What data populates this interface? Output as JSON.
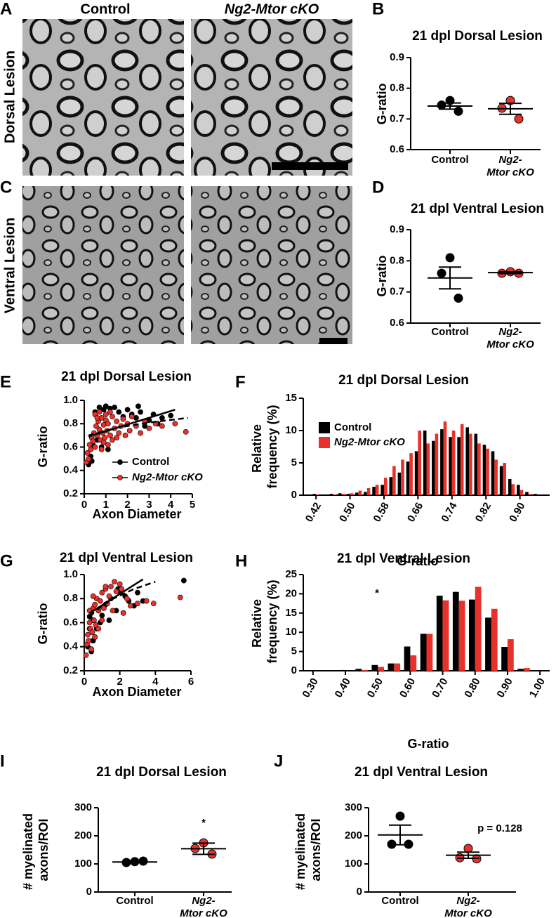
{
  "panel_labels": [
    "A",
    "B",
    "C",
    "D",
    "E",
    "F",
    "G",
    "H",
    "I",
    "J"
  ],
  "micrographs": {
    "columns": [
      "Control",
      "Ng2-Mtor cKO"
    ],
    "rows": [
      "Dorsal Lesion",
      "Ventral Lesion"
    ]
  },
  "chart_data": [
    {
      "type": "dot",
      "title": "21 dpl Dorsal Lesion",
      "ylabel": "G-ratio",
      "categories": [
        "Control",
        "Ng2-Mtor cKO"
      ],
      "category_styles": [
        "normal",
        "italic"
      ],
      "colors": [
        "#000000",
        "#e8312a"
      ],
      "points": [
        [
          0.76,
          0.745,
          0.725
        ],
        [
          0.76,
          0.735,
          0.7
        ]
      ],
      "means": [
        0.742,
        0.733
      ],
      "sems": [
        0.01,
        0.018
      ],
      "ylim": [
        0.6,
        0.9
      ],
      "yticks": [
        0.6,
        0.7,
        0.8,
        0.9
      ]
    },
    {
      "type": "dot",
      "title": "21 dpl Ventral Lesion",
      "ylabel": "G-ratio",
      "categories": [
        "Control",
        "Ng2-Mtor cKO"
      ],
      "category_styles": [
        "normal",
        "italic"
      ],
      "colors": [
        "#000000",
        "#e8312a"
      ],
      "points": [
        [
          0.81,
          0.76,
          0.68
        ],
        [
          0.765,
          0.76,
          0.76
        ]
      ],
      "means": [
        0.745,
        0.762
      ],
      "sems": [
        0.035,
        0.003
      ],
      "ylim": [
        0.6,
        0.9
      ],
      "yticks": [
        0.6,
        0.7,
        0.8,
        0.9
      ]
    },
    {
      "type": "scatter",
      "title": "21 dpl Dorsal Lesion",
      "xlabel": "Axon Diameter",
      "ylabel": "G-ratio",
      "xlim": [
        0,
        5
      ],
      "xticks": [
        0,
        1,
        2,
        3,
        4,
        5
      ],
      "ylim": [
        0.2,
        1.0
      ],
      "yticks": [
        0.2,
        0.4,
        0.6,
        0.8,
        {
          "value": 1.0,
          "label": "1.0"
        }
      ],
      "legend": "bottom-right",
      "series": [
        {
          "name": "Control",
          "color": "#000000",
          "style": "normal",
          "x": [
            0.2,
            0.3,
            0.4,
            0.5,
            0.6,
            0.7,
            0.9,
            1.0,
            1.2,
            1.4,
            1.6,
            1.8,
            2.0,
            2.2,
            2.4,
            2.6,
            2.8,
            3.0,
            3.2,
            3.4,
            3.6,
            4.0,
            0.8,
            1.1,
            2.5,
            0.35
          ],
          "y": [
            0.45,
            0.52,
            0.62,
            0.9,
            0.66,
            0.94,
            0.92,
            0.95,
            0.93,
            0.94,
            0.9,
            0.86,
            0.92,
            0.88,
            0.85,
            0.9,
            0.78,
            0.83,
            0.88,
            0.8,
            0.85,
            0.87,
            0.6,
            0.58,
            0.95,
            0.48
          ],
          "fit": {
            "x": [
              0.2,
              4.2
            ],
            "y": [
              0.69,
              0.92
            ],
            "dash": false
          }
        },
        {
          "name": "Ng2-Mtor cKO",
          "color": "#e8312a",
          "style": "italic",
          "x": [
            0.1,
            0.15,
            0.2,
            0.25,
            0.3,
            0.35,
            0.4,
            0.45,
            0.5,
            0.55,
            0.6,
            0.65,
            0.7,
            0.75,
            0.8,
            0.85,
            0.9,
            0.95,
            1.0,
            1.05,
            1.1,
            1.2,
            1.3,
            1.4,
            1.5,
            1.6,
            1.7,
            1.8,
            1.9,
            2.0,
            2.1,
            2.2,
            2.4,
            2.6,
            2.8,
            3.0,
            3.3,
            3.6,
            4.2,
            4.7,
            0.5,
            0.7,
            0.9,
            1.1,
            1.3,
            0.6,
            0.8,
            1.0,
            1.2,
            1.5
          ],
          "y": [
            0.47,
            0.55,
            0.5,
            0.62,
            0.58,
            0.68,
            0.65,
            0.72,
            0.6,
            0.78,
            0.7,
            0.82,
            0.75,
            0.66,
            0.85,
            0.72,
            0.79,
            0.68,
            0.83,
            0.74,
            0.8,
            0.7,
            0.86,
            0.76,
            0.82,
            0.72,
            0.78,
            0.84,
            0.7,
            0.8,
            0.74,
            0.86,
            0.78,
            0.72,
            0.82,
            0.76,
            0.8,
            0.78,
            0.8,
            0.73,
            0.88,
            0.9,
            0.64,
            0.62,
            0.66,
            0.85,
            0.58,
            0.88,
            0.9,
            0.68
          ],
          "fit": {
            "x": [
              0.2,
              1.5,
              3.0,
              4.8
            ],
            "y": [
              0.7,
              0.765,
              0.81,
              0.85
            ],
            "dash": true
          }
        }
      ]
    },
    {
      "type": "bar",
      "title": "21 dpl Dorsal Lesion",
      "xlabel": "G-ratio",
      "ylabel": "Relative frequency (%)",
      "xlim": [
        0.39,
        0.97
      ],
      "xticks": [
        0.42,
        {
          "value": 0.5,
          "label": "0.50"
        },
        0.58,
        0.66,
        0.74,
        0.82,
        {
          "value": 0.9,
          "label": "0.90"
        }
      ],
      "ylim": [
        0,
        15
      ],
      "yticks": [
        0,
        5,
        10,
        15
      ],
      "legend": "top-left",
      "x": [
        0.4,
        0.42,
        0.44,
        0.46,
        0.48,
        0.5,
        0.52,
        0.54,
        0.56,
        0.58,
        0.6,
        0.62,
        0.64,
        0.66,
        0.68,
        0.7,
        0.72,
        0.74,
        0.76,
        0.78,
        0.8,
        0.82,
        0.84,
        0.86,
        0.88,
        0.9,
        0.92,
        0.94,
        0.96
      ],
      "series": [
        {
          "name": "Control",
          "color": "#000000",
          "style": "normal",
          "values": [
            0.1,
            0.2,
            0.1,
            0.2,
            0.3,
            0.2,
            0.4,
            0.5,
            1.3,
            1.6,
            2.8,
            3.5,
            5.2,
            6.8,
            10,
            8.4,
            10.2,
            9,
            9,
            10.5,
            9.5,
            7.8,
            6.8,
            4.5,
            2.5,
            1.6,
            0.5,
            0.2,
            0
          ]
        },
        {
          "name": "Ng2-Mtor cKO",
          "color": "#e8312a",
          "style": "italic",
          "values": [
            0,
            0.1,
            0,
            0.1,
            0.2,
            0.3,
            0.7,
            1.1,
            1.6,
            2.7,
            4.5,
            5.5,
            6.5,
            10,
            8,
            9.5,
            11.4,
            10,
            11,
            9.5,
            8,
            7.2,
            5.5,
            5,
            1.7,
            0.8,
            0.2,
            0,
            0
          ]
        }
      ]
    },
    {
      "type": "scatter",
      "title": "21 dpl Ventral Lesion",
      "xlabel": "Axon Diameter",
      "ylabel": "G-ratio",
      "xlim": [
        0,
        6
      ],
      "xticks": [
        0,
        2,
        4,
        6
      ],
      "ylim": [
        0.2,
        1.0
      ],
      "yticks": [
        0.2,
        0.4,
        0.6,
        0.8,
        {
          "value": 1.0,
          "label": "1.0"
        }
      ],
      "series": [
        {
          "color": "#000000",
          "x": [
            0.2,
            0.3,
            0.4,
            0.5,
            0.6,
            0.8,
            1.0,
            1.2,
            1.5,
            1.8,
            2.0,
            2.3,
            2.5,
            2.8,
            3.0,
            3.3,
            0.3,
            0.5,
            0.7,
            0.9,
            1.4,
            1.9,
            5.6,
            2.2
          ],
          "y": [
            0.4,
            0.55,
            0.36,
            0.62,
            0.48,
            0.7,
            0.66,
            0.75,
            0.8,
            0.7,
            0.86,
            0.82,
            0.78,
            0.74,
            0.85,
            0.78,
            0.65,
            0.45,
            0.55,
            0.6,
            0.62,
            0.88,
            0.95,
            0.68
          ],
          "fit": {
            "x": [
              0.3,
              3.3
            ],
            "y": [
              0.68,
              0.96
            ],
            "dash": false
          }
        },
        {
          "color": "#e8312a",
          "x": [
            0.1,
            0.15,
            0.2,
            0.25,
            0.3,
            0.35,
            0.4,
            0.45,
            0.5,
            0.55,
            0.6,
            0.65,
            0.7,
            0.8,
            0.9,
            1.0,
            1.1,
            1.2,
            1.3,
            1.4,
            1.5,
            1.6,
            1.8,
            2.0,
            2.2,
            2.4,
            2.6,
            3.0,
            3.5,
            3.9,
            5.4,
            0.4,
            0.6,
            0.8,
            1.0,
            1.2,
            1.7,
            2.1,
            0.3,
            0.5
          ],
          "y": [
            0.33,
            0.42,
            0.5,
            0.45,
            0.6,
            0.55,
            0.68,
            0.52,
            0.72,
            0.62,
            0.75,
            0.58,
            0.8,
            0.7,
            0.78,
            0.85,
            0.72,
            0.88,
            0.76,
            0.82,
            0.9,
            0.7,
            0.86,
            0.92,
            0.68,
            0.8,
            0.74,
            0.76,
            0.78,
            0.76,
            0.81,
            0.38,
            0.48,
            0.55,
            0.62,
            0.9,
            0.94,
            0.88,
            0.7,
            0.82
          ],
          "fit": {
            "x": [
              0.3,
              1.5,
              2.8,
              4.0
            ],
            "y": [
              0.66,
              0.79,
              0.88,
              0.94
            ],
            "dash": true
          }
        }
      ]
    },
    {
      "type": "bar",
      "title": "21 dpl Ventral Lesion",
      "xlabel": "G-ratio",
      "ylabel": "Relative frequency (%)",
      "annotation": "*",
      "xlim": [
        0.27,
        1.03
      ],
      "xticks": [
        {
          "value": 0.3,
          "label": "0.30"
        },
        {
          "value": 0.4,
          "label": "0.40"
        },
        {
          "value": 0.5,
          "label": "0.50"
        },
        {
          "value": 0.6,
          "label": "0.60"
        },
        {
          "value": 0.7,
          "label": "0.70"
        },
        {
          "value": 0.8,
          "label": "0.80"
        },
        {
          "value": 0.9,
          "label": "0.90"
        },
        {
          "value": 1.0,
          "label": "1.00"
        }
      ],
      "ylim": [
        0,
        25
      ],
      "yticks": [
        0,
        5,
        10,
        15,
        20,
        25
      ],
      "x": [
        0.3,
        0.35,
        0.4,
        0.45,
        0.5,
        0.55,
        0.6,
        0.65,
        0.7,
        0.75,
        0.8,
        0.85,
        0.9,
        0.95,
        1.0
      ],
      "series": [
        {
          "color": "#000000",
          "values": [
            0,
            0,
            0.2,
            0.5,
            1.5,
            1.9,
            6.3,
            9.6,
            19.5,
            20.5,
            18.5,
            13.8,
            6.2,
            0.5,
            0
          ]
        },
        {
          "color": "#e8312a",
          "values": [
            0,
            0,
            0,
            0.2,
            1.0,
            1.9,
            4.0,
            9.6,
            18.3,
            18.2,
            21.8,
            16.1,
            8.2,
            0.7,
            0
          ]
        }
      ]
    },
    {
      "type": "dot",
      "title": "21 dpl Dorsal Lesion",
      "ylabel": "# myelinated axons/ROI",
      "annotation": "*",
      "categories": [
        "Control",
        "Ng2-Mtor cKO"
      ],
      "category_styles": [
        "normal",
        "italic"
      ],
      "colors": [
        "#000000",
        "#e8312a"
      ],
      "points": [
        [
          108,
          105,
          110
        ],
        [
          175,
          155,
          135
        ]
      ],
      "means": [
        107,
        154
      ],
      "sems": [
        2,
        20
      ],
      "ylim": [
        0,
        300
      ],
      "yticks": [
        0,
        100,
        200,
        300
      ]
    },
    {
      "type": "dot",
      "title": "21 dpl Ventral Lesion",
      "ylabel": "# myelinated axons/ROI",
      "annotation": "p = 0.128",
      "categories": [
        "Control",
        "Ng2-Mtor cKO"
      ],
      "category_styles": [
        "normal",
        "italic"
      ],
      "colors": [
        "#000000",
        "#e8312a"
      ],
      "points": [
        [
          270,
          170,
          170
        ],
        [
          155,
          122,
          118
        ]
      ],
      "means": [
        203,
        131
      ],
      "sems": [
        35,
        11
      ],
      "ylim": [
        0,
        300
      ],
      "yticks": [
        0,
        100,
        200,
        300
      ]
    }
  ]
}
